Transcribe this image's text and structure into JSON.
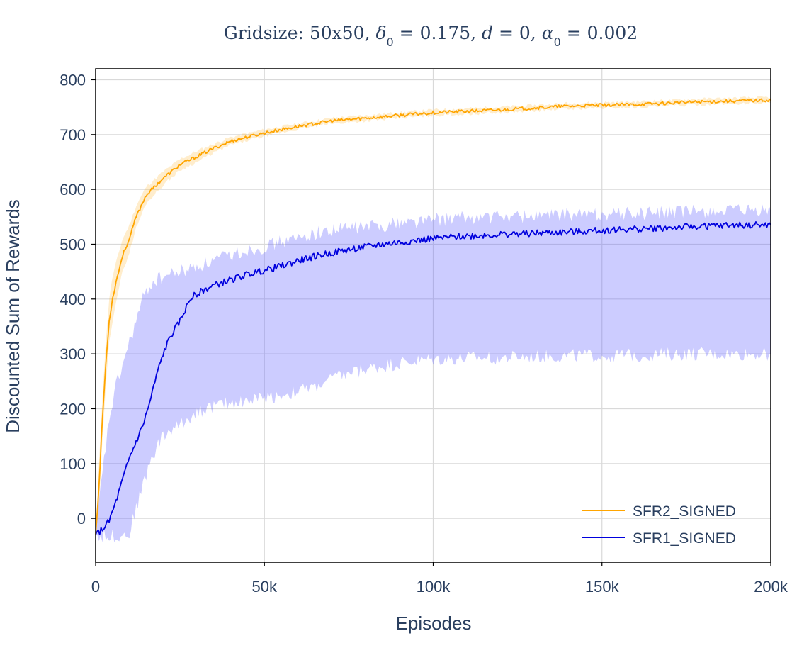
{
  "chart_data": {
    "type": "line",
    "title_parts": [
      "Gridsize: 50x50, ",
      "δ",
      "0",
      " = 0.175, ",
      "d",
      " = 0, ",
      "α",
      "0",
      " = 0.002"
    ],
    "xlabel": "Episodes",
    "ylabel": "Discounted Sum of Rewards",
    "xlim": [
      0,
      200000
    ],
    "ylim": [
      -80,
      820
    ],
    "x_ticks": [
      0,
      50000,
      100000,
      150000,
      200000
    ],
    "x_tick_labels": [
      "0",
      "50k",
      "100k",
      "150k",
      "200k"
    ],
    "y_ticks": [
      0,
      100,
      200,
      300,
      400,
      500,
      600,
      700,
      800
    ],
    "y_tick_labels": [
      "0",
      "100",
      "200",
      "300",
      "400",
      "500",
      "600",
      "700",
      "800"
    ],
    "grid": true,
    "legend_position": "bottom-right",
    "series": [
      {
        "name": "SFR2_SIGNED",
        "color": "#ffa500",
        "band_color": "#ffa500",
        "band_opacity": 0.2,
        "x": [
          0,
          1000,
          2000,
          3000,
          4000,
          5000,
          6000,
          8000,
          10000,
          12000,
          15000,
          20000,
          25000,
          30000,
          35000,
          40000,
          50000,
          60000,
          70000,
          80000,
          90000,
          100000,
          120000,
          140000,
          160000,
          180000,
          200000
        ],
        "mean": [
          -30,
          60,
          180,
          280,
          360,
          400,
          430,
          480,
          510,
          550,
          590,
          620,
          645,
          660,
          675,
          688,
          703,
          715,
          725,
          730,
          735,
          740,
          745,
          752,
          755,
          760,
          763
        ],
        "upper": [
          -28,
          100,
          220,
          320,
          400,
          440,
          465,
          510,
          535,
          570,
          605,
          632,
          655,
          670,
          683,
          695,
          709,
          720,
          730,
          735,
          740,
          745,
          750,
          757,
          760,
          765,
          768
        ],
        "lower": [
          -32,
          20,
          140,
          240,
          320,
          360,
          395,
          450,
          485,
          530,
          575,
          608,
          635,
          650,
          667,
          681,
          697,
          710,
          720,
          725,
          730,
          735,
          740,
          747,
          750,
          755,
          758
        ]
      },
      {
        "name": "SFR1_SIGNED",
        "color": "#0000dd",
        "band_color": "#6464ff",
        "band_opacity": 0.33,
        "x": [
          0,
          2000,
          4000,
          6000,
          8000,
          10000,
          12000,
          14000,
          16000,
          18000,
          20000,
          22000,
          25000,
          28000,
          30000,
          35000,
          40000,
          45000,
          50000,
          55000,
          60000,
          65000,
          70000,
          75000,
          80000,
          85000,
          90000,
          95000,
          100000,
          110000,
          120000,
          130000,
          140000,
          150000,
          160000,
          170000,
          180000,
          190000,
          200000
        ],
        "mean": [
          -30,
          -20,
          -5,
          30,
          70,
          110,
          140,
          170,
          210,
          260,
          300,
          330,
          360,
          400,
          410,
          425,
          435,
          445,
          452,
          460,
          470,
          478,
          485,
          490,
          495,
          500,
          503,
          507,
          510,
          515,
          518,
          520,
          522,
          525,
          528,
          530,
          533,
          535,
          535
        ],
        "upper": [
          -28,
          80,
          180,
          240,
          280,
          320,
          360,
          400,
          425,
          435,
          440,
          445,
          450,
          455,
          460,
          470,
          480,
          490,
          495,
          505,
          510,
          520,
          525,
          530,
          532,
          535,
          540,
          542,
          545,
          548,
          550,
          552,
          553,
          555,
          556,
          558,
          560,
          560,
          560
        ],
        "lower": [
          -32,
          -32,
          -32,
          -31,
          -30,
          -28,
          20,
          60,
          100,
          130,
          150,
          160,
          170,
          185,
          195,
          205,
          210,
          215,
          220,
          225,
          232,
          240,
          255,
          265,
          272,
          278,
          283,
          287,
          290,
          292,
          293,
          295,
          296,
          297,
          298,
          299,
          300,
          300,
          300
        ]
      }
    ]
  }
}
